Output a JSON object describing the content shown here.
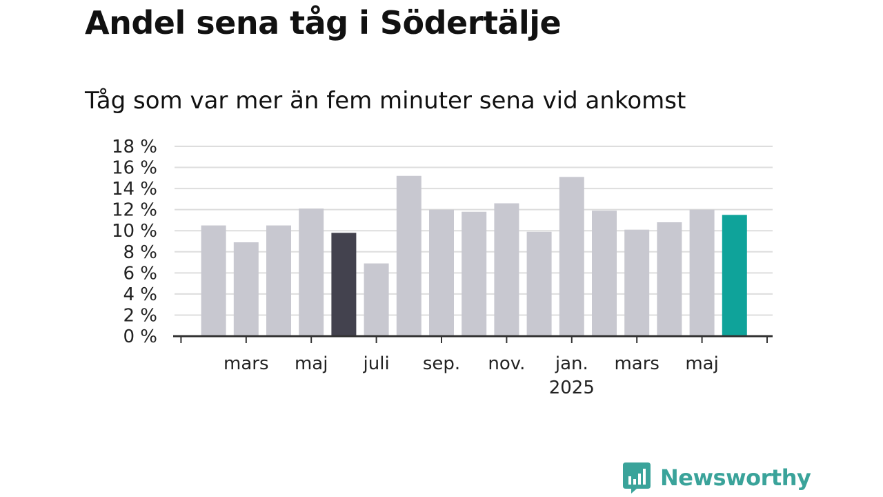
{
  "header": {
    "title": "Andel sena tåg i Södertälje",
    "subtitle": "Tåg som var mer än fem minuter sena vid ankomst"
  },
  "brand": {
    "name": "Newsworthy",
    "logo_icon": "bar-chart-speech-bubble-icon",
    "color": "#3aa39a"
  },
  "chart_data": {
    "type": "bar",
    "categories": [
      "2024-02",
      "2024-03",
      "2024-04",
      "2024-05",
      "2024-06",
      "2024-07",
      "2024-08",
      "2024-09",
      "2024-10",
      "2024-11",
      "2024-12",
      "2025-01",
      "2025-02",
      "2025-03",
      "2025-04",
      "2025-05",
      "2025-06"
    ],
    "values": [
      10.5,
      8.9,
      10.5,
      12.1,
      9.8,
      6.9,
      15.2,
      12.0,
      11.8,
      12.6,
      9.9,
      15.1,
      11.9,
      10.1,
      10.8,
      12.0,
      11.5
    ],
    "bar_colors": [
      "#c8c8d0",
      "#c8c8d0",
      "#c8c8d0",
      "#c8c8d0",
      "#43424e",
      "#c8c8d0",
      "#c8c8d0",
      "#c8c8d0",
      "#c8c8d0",
      "#c8c8d0",
      "#c8c8d0",
      "#c8c8d0",
      "#c8c8d0",
      "#c8c8d0",
      "#c8c8d0",
      "#c8c8d0",
      "#0fa39a"
    ],
    "ylim": [
      0,
      18
    ],
    "y_ticks": [
      0,
      2,
      4,
      6,
      8,
      10,
      12,
      14,
      16,
      18
    ],
    "y_tick_labels": [
      "0 %",
      "2 %",
      "4 %",
      "6 %",
      "8 %",
      "10 %",
      "12 %",
      "14 %",
      "16 %",
      "18 %"
    ],
    "x_tick_labels": [
      {
        "category": "2024-03",
        "label": "mars"
      },
      {
        "category": "2024-05",
        "label": "maj"
      },
      {
        "category": "2024-07",
        "label": "juli"
      },
      {
        "category": "2024-09",
        "label": "sep."
      },
      {
        "category": "2024-11",
        "label": "nov."
      },
      {
        "category": "2025-01",
        "label": "jan.",
        "sublabel": "2025"
      },
      {
        "category": "2025-03",
        "label": "mars"
      },
      {
        "category": "2025-05",
        "label": "maj"
      }
    ],
    "xlabel": "",
    "ylabel": "",
    "grid": true,
    "grid_color": "#dddddd",
    "axis_color": "#333333"
  }
}
